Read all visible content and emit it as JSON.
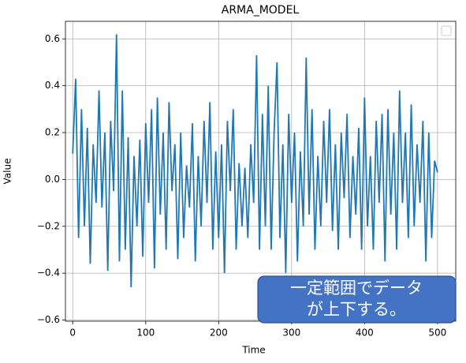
{
  "chart_data": {
    "type": "line",
    "title": "ARMA_MODEL",
    "x_label": "Time",
    "y_label": "Value",
    "color": "#1f77b4",
    "grid": true,
    "annotation": [
      "一定範囲でデータ",
      "が上下する。"
    ],
    "xlim": [
      -10,
      525
    ],
    "ylim": [
      -0.605,
      0.675
    ],
    "xticks": [
      0,
      100,
      200,
      300,
      400,
      500
    ],
    "yticks": [
      {
        "value": -0.6,
        "label": "−0.6"
      },
      {
        "value": -0.4,
        "label": "−0.4"
      },
      {
        "value": -0.2,
        "label": "−0.2"
      },
      {
        "value": 0,
        "label": "0.0"
      },
      {
        "value": 0.2,
        "label": "0.2"
      },
      {
        "value": 0.4,
        "label": "0.4"
      },
      {
        "value": 0.6,
        "label": "0.6"
      }
    ],
    "x": [
      0,
      4,
      8,
      12,
      16,
      20,
      24,
      28,
      32,
      36,
      40,
      44,
      48,
      52,
      56,
      60,
      64,
      68,
      72,
      76,
      80,
      84,
      88,
      92,
      96,
      100,
      104,
      108,
      112,
      116,
      120,
      124,
      128,
      132,
      136,
      140,
      144,
      148,
      152,
      156,
      160,
      164,
      168,
      172,
      176,
      180,
      184,
      188,
      192,
      196,
      200,
      204,
      208,
      212,
      216,
      220,
      224,
      228,
      232,
      236,
      240,
      244,
      248,
      252,
      256,
      260,
      264,
      268,
      272,
      276,
      280,
      284,
      288,
      292,
      296,
      300,
      304,
      308,
      312,
      316,
      320,
      324,
      328,
      332,
      336,
      340,
      344,
      348,
      352,
      356,
      360,
      364,
      368,
      372,
      376,
      380,
      384,
      388,
      392,
      396,
      400,
      404,
      408,
      412,
      416,
      420,
      424,
      428,
      432,
      436,
      440,
      444,
      448,
      452,
      456,
      460,
      464,
      468,
      472,
      476,
      480,
      484,
      488,
      492,
      496,
      500
    ],
    "values": [
      0.11,
      0.43,
      -0.25,
      0.3,
      -0.2,
      0.22,
      -0.36,
      0.15,
      -0.1,
      0.38,
      -0.12,
      0.2,
      -0.39,
      0.25,
      -0.05,
      0.62,
      -0.35,
      0.38,
      -0.3,
      0.18,
      -0.46,
      0.1,
      -0.2,
      0.17,
      -0.33,
      0.24,
      -0.1,
      0.3,
      -0.38,
      0.35,
      -0.15,
      0.2,
      -0.3,
      0.33,
      -0.05,
      0.15,
      -0.34,
      0.2,
      -0.25,
      0.06,
      -0.12,
      0.24,
      -0.35,
      0.1,
      -0.2,
      0.25,
      -0.1,
      0.33,
      -0.3,
      0.12,
      -0.25,
      0.15,
      -0.4,
      0.25,
      -0.05,
      0.3,
      -0.3,
      0.07,
      -0.2,
      0.05,
      -0.25,
      0.15,
      -0.1,
      0.53,
      -0.3,
      0.28,
      -0.2,
      0.4,
      -0.3,
      0.2,
      0.5,
      -0.25,
      0.15,
      -0.4,
      0.28,
      -0.1,
      0.2,
      -0.35,
      0.12,
      -0.2,
      0.52,
      -0.15,
      0.3,
      -0.3,
      0.1,
      -0.2,
      0.25,
      -0.1,
      0.3,
      -0.22,
      0.15,
      -0.3,
      0.2,
      -0.08,
      0.28,
      -0.25,
      0.1,
      -0.15,
      0.22,
      -0.3,
      0.35,
      -0.2,
      0.1,
      -0.3,
      0.25,
      -0.1,
      0.28,
      -0.35,
      0.3,
      -0.15,
      0.2,
      -0.3,
      0.38,
      -0.1,
      0.2,
      -0.25,
      0.32,
      -0.2,
      0.15,
      -0.1,
      0.25,
      -0.35,
      0.2,
      -0.25,
      0.08,
      0.03
    ]
  }
}
